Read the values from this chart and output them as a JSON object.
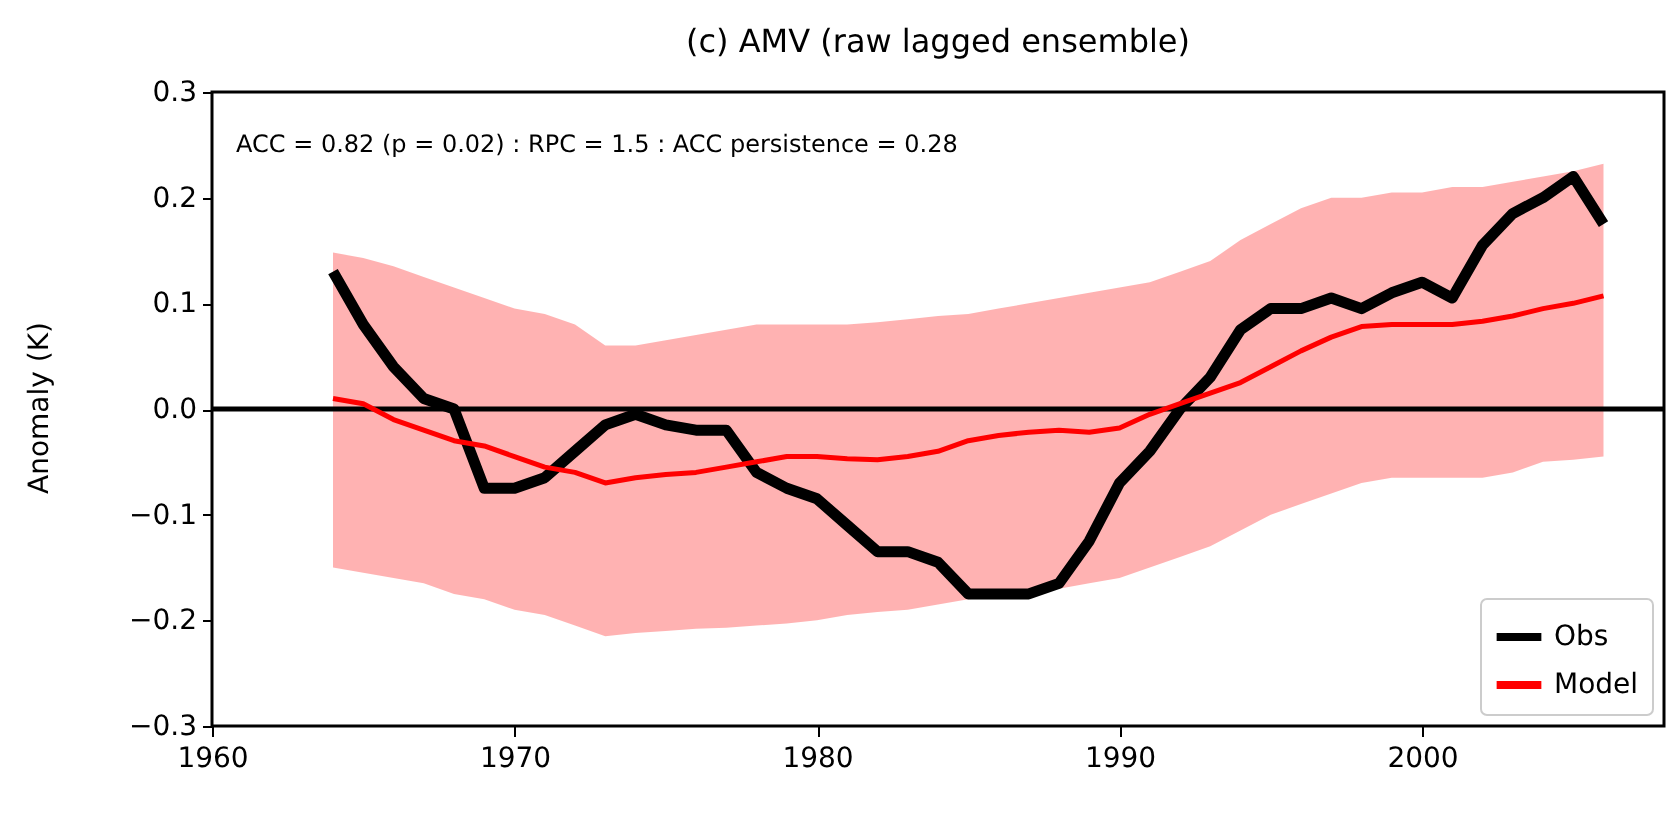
{
  "chart_data": {
    "type": "line",
    "title": "(c) AMV (raw lagged ensemble)",
    "ylabel": "Anomaly (K)",
    "annotations": [
      "ACC = 0.82 (p = 0.02) :  RPC = 1.5 : ACC persistence = 0.28"
    ],
    "x": [
      1964,
      1965,
      1966,
      1967,
      1968,
      1969,
      1970,
      1971,
      1972,
      1973,
      1974,
      1975,
      1976,
      1977,
      1978,
      1979,
      1980,
      1981,
      1982,
      1983,
      1984,
      1985,
      1986,
      1987,
      1988,
      1989,
      1990,
      1991,
      1992,
      1993,
      1994,
      1995,
      1996,
      1997,
      1998,
      1999,
      2000,
      2001,
      2002,
      2003,
      2004,
      2005,
      2006
    ],
    "series": [
      {
        "name": "Obs",
        "color": "#000000",
        "values": [
          0.13,
          0.08,
          0.04,
          0.01,
          0.0,
          -0.075,
          -0.075,
          -0.065,
          -0.04,
          -0.015,
          -0.005,
          -0.015,
          -0.02,
          -0.02,
          -0.06,
          -0.075,
          -0.085,
          -0.11,
          -0.135,
          -0.135,
          -0.145,
          -0.175,
          -0.175,
          -0.175,
          -0.165,
          -0.125,
          -0.07,
          -0.04,
          0.0,
          0.03,
          0.075,
          0.095,
          0.095,
          0.105,
          0.095,
          0.11,
          0.12,
          0.105,
          0.155,
          0.185,
          0.2,
          0.22,
          0.175
        ]
      },
      {
        "name": "Model",
        "color": "#ff0000",
        "values": [
          0.01,
          0.005,
          -0.01,
          -0.02,
          -0.03,
          -0.035,
          -0.045,
          -0.055,
          -0.06,
          -0.07,
          -0.065,
          -0.062,
          -0.06,
          -0.055,
          -0.05,
          -0.045,
          -0.045,
          -0.047,
          -0.048,
          -0.045,
          -0.04,
          -0.03,
          -0.025,
          -0.022,
          -0.02,
          -0.022,
          -0.018,
          -0.005,
          0.005,
          0.015,
          0.025,
          0.04,
          0.055,
          0.068,
          0.078,
          0.08,
          0.08,
          0.08,
          0.083,
          0.088,
          0.095,
          0.1,
          0.107
        ],
        "upper": [
          0.148,
          0.143,
          0.135,
          0.125,
          0.115,
          0.105,
          0.095,
          0.09,
          0.08,
          0.06,
          0.06,
          0.065,
          0.07,
          0.075,
          0.08,
          0.08,
          0.08,
          0.08,
          0.082,
          0.085,
          0.088,
          0.09,
          0.095,
          0.1,
          0.105,
          0.11,
          0.115,
          0.12,
          0.13,
          0.14,
          0.16,
          0.175,
          0.19,
          0.2,
          0.2,
          0.205,
          0.205,
          0.21,
          0.21,
          0.215,
          0.22,
          0.225,
          0.232
        ],
        "lower": [
          -0.15,
          -0.155,
          -0.16,
          -0.165,
          -0.175,
          -0.18,
          -0.19,
          -0.195,
          -0.205,
          -0.215,
          -0.212,
          -0.21,
          -0.208,
          -0.207,
          -0.205,
          -0.203,
          -0.2,
          -0.195,
          -0.192,
          -0.19,
          -0.185,
          -0.18,
          -0.178,
          -0.175,
          -0.17,
          -0.165,
          -0.16,
          -0.15,
          -0.14,
          -0.13,
          -0.115,
          -0.1,
          -0.09,
          -0.08,
          -0.07,
          -0.065,
          -0.065,
          -0.065,
          -0.065,
          -0.06,
          -0.05,
          -0.048,
          -0.045
        ]
      }
    ],
    "xlim": [
      1960,
      2008
    ],
    "xticks": [
      1960,
      1970,
      1980,
      1990,
      2000
    ],
    "ylim": [
      -0.3,
      0.3
    ],
    "yticks": [
      {
        "value": -0.3,
        "label": "−0.3"
      },
      {
        "value": -0.2,
        "label": "−0.2"
      },
      {
        "value": -0.1,
        "label": "−0.1"
      },
      {
        "value": 0,
        "label": "0.0"
      },
      {
        "value": 0.1,
        "label": "0.1"
      },
      {
        "value": 0.2,
        "label": "0.2"
      },
      {
        "value": 0.3,
        "label": "0.3"
      }
    ],
    "ref_lines": [
      {
        "axis": "y",
        "value": 0,
        "color": "#000000"
      }
    ],
    "legend": "bottom right",
    "grid": false,
    "marker": "none",
    "line_style": "solid"
  }
}
